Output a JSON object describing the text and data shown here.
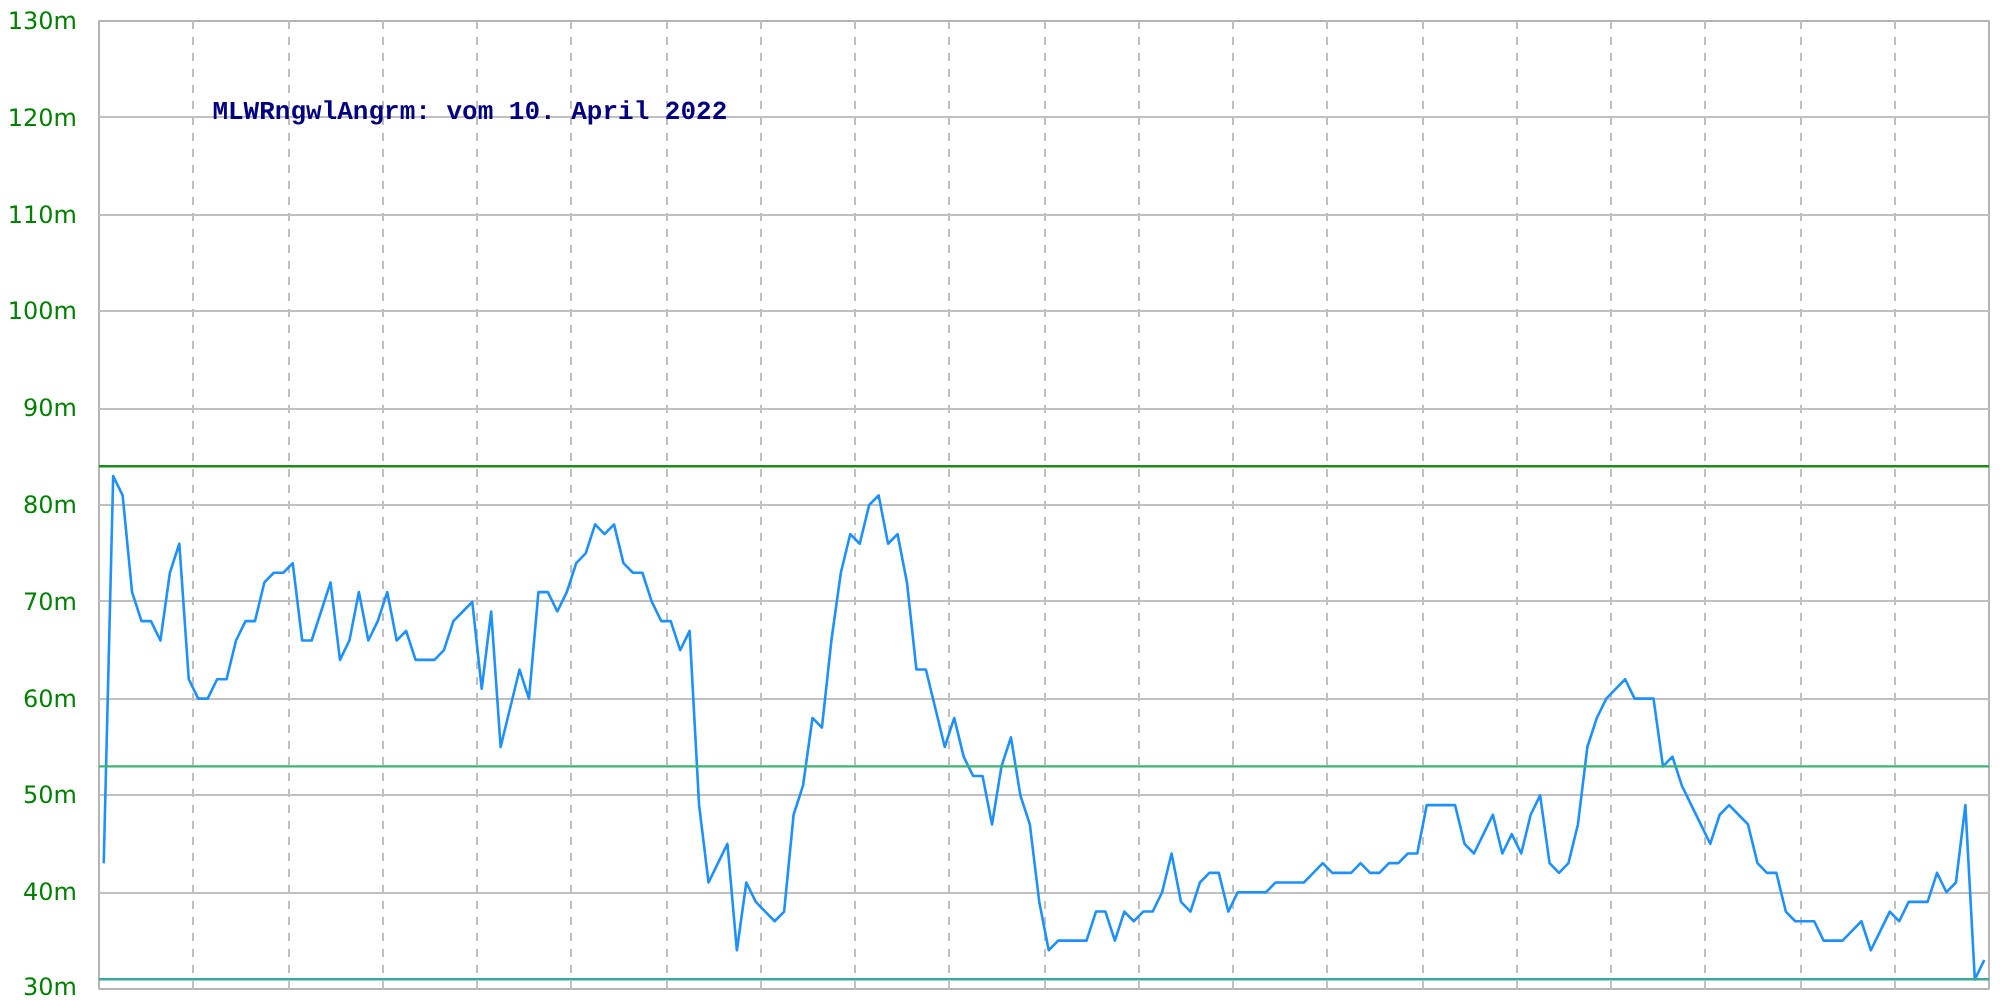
{
  "chart_data": {
    "type": "line",
    "title": "MLWRngwlAngrm: vom 10. April 2022",
    "ylim": [
      30,
      130
    ],
    "yticks": [
      {
        "value": 30,
        "label": "30m"
      },
      {
        "value": 40,
        "label": "40m"
      },
      {
        "value": 50,
        "label": "50m"
      },
      {
        "value": 60,
        "label": "60m"
      },
      {
        "value": 70,
        "label": "70m"
      },
      {
        "value": 80,
        "label": "80m"
      },
      {
        "value": 90,
        "label": "90m"
      },
      {
        "value": 100,
        "label": "100m"
      },
      {
        "value": 110,
        "label": "110m"
      },
      {
        "value": 120,
        "label": "120m"
      },
      {
        "value": 130,
        "label": "130m"
      }
    ],
    "grid": true,
    "marker": "none",
    "line_style": "solid",
    "ref_lines": [
      {
        "axis": "y",
        "value": 84,
        "color": "#1a8c1a"
      },
      {
        "axis": "y",
        "value": 53,
        "color": "#3cb371"
      },
      {
        "axis": "y",
        "value": 31,
        "color": "#3aa89a"
      }
    ],
    "categories": [
      null,
      null,
      null,
      null,
      null,
      null,
      null,
      null,
      null,
      null,
      null,
      null,
      null,
      null,
      null,
      null,
      null,
      null,
      null,
      null,
      null,
      null,
      null,
      null,
      null,
      null,
      null,
      null,
      null,
      null,
      null,
      null,
      null,
      null,
      null,
      null,
      null,
      null,
      null,
      null,
      null,
      null,
      null,
      null,
      null,
      null,
      null,
      null,
      null,
      null,
      null,
      null,
      null,
      null,
      null,
      null,
      null,
      null,
      null,
      null,
      null,
      null,
      null,
      null,
      null,
      null,
      null,
      null,
      null,
      null,
      null,
      null,
      null,
      null,
      null,
      null,
      null,
      null,
      null,
      null,
      null,
      null,
      null,
      null,
      null,
      null,
      null,
      null,
      null,
      null,
      null,
      null,
      null,
      null,
      null,
      null,
      null,
      null,
      null,
      null,
      null,
      null,
      null,
      null,
      null,
      null,
      null,
      null,
      null,
      null,
      null,
      null,
      null,
      null,
      null,
      null,
      null,
      null,
      null,
      null,
      null,
      null,
      null,
      null,
      null,
      null,
      null,
      null,
      null,
      null,
      null,
      null,
      null,
      null,
      null,
      null,
      null,
      null,
      null,
      null,
      null,
      null,
      null,
      null,
      null,
      null,
      null,
      null,
      null,
      null,
      null,
      null,
      null,
      null,
      null,
      null,
      null,
      null,
      null,
      null,
      null,
      null,
      null,
      null,
      null,
      null,
      null,
      null,
      null,
      null,
      null,
      null,
      null,
      null,
      null,
      null,
      null,
      null,
      null,
      null,
      null,
      null,
      null,
      null,
      null,
      null,
      null,
      null,
      null,
      null,
      null,
      null,
      null,
      null,
      null,
      null,
      null,
      null,
      null,
      null
    ],
    "series": [
      {
        "color": "#1e90ff",
        "values": [
          43,
          83,
          81,
          71,
          68,
          68,
          66,
          73,
          76,
          62,
          60,
          60,
          62,
          62,
          66,
          68,
          68,
          72,
          73,
          73,
          74,
          66,
          66,
          69,
          72,
          64,
          66,
          71,
          66,
          68,
          71,
          66,
          67,
          64,
          64,
          64,
          65,
          68,
          69,
          70,
          61,
          69,
          55,
          59,
          63,
          60,
          71,
          71,
          69,
          71,
          74,
          75,
          78,
          77,
          78,
          74,
          73,
          73,
          70,
          68,
          68,
          65,
          67,
          49,
          41,
          43,
          45,
          34,
          41,
          39,
          38,
          37,
          38,
          48,
          51,
          58,
          57,
          66,
          73,
          77,
          76,
          80,
          81,
          76,
          77,
          72,
          63,
          63,
          59,
          55,
          58,
          54,
          52,
          52,
          47,
          53,
          56,
          50,
          47,
          39,
          34,
          35,
          35,
          35,
          35,
          38,
          38,
          35,
          38,
          37,
          38,
          38,
          40,
          44,
          39,
          38,
          41,
          42,
          42,
          38,
          40,
          40,
          40,
          40,
          41,
          41,
          41,
          41,
          42,
          43,
          42,
          42,
          42,
          43,
          42,
          42,
          43,
          43,
          44,
          44,
          49,
          49,
          49,
          49,
          45,
          44,
          46,
          48,
          44,
          46,
          44,
          48,
          50,
          43,
          42,
          43,
          47,
          55,
          58,
          60,
          61,
          62,
          60,
          60,
          60,
          53,
          54,
          51,
          49,
          47,
          45,
          48,
          49,
          48,
          47,
          43,
          42,
          42,
          38,
          37,
          37,
          37,
          35,
          35,
          35,
          36,
          37,
          34,
          36,
          38,
          37,
          39,
          39,
          39,
          42,
          40,
          41,
          49,
          31,
          33
        ]
      }
    ]
  }
}
